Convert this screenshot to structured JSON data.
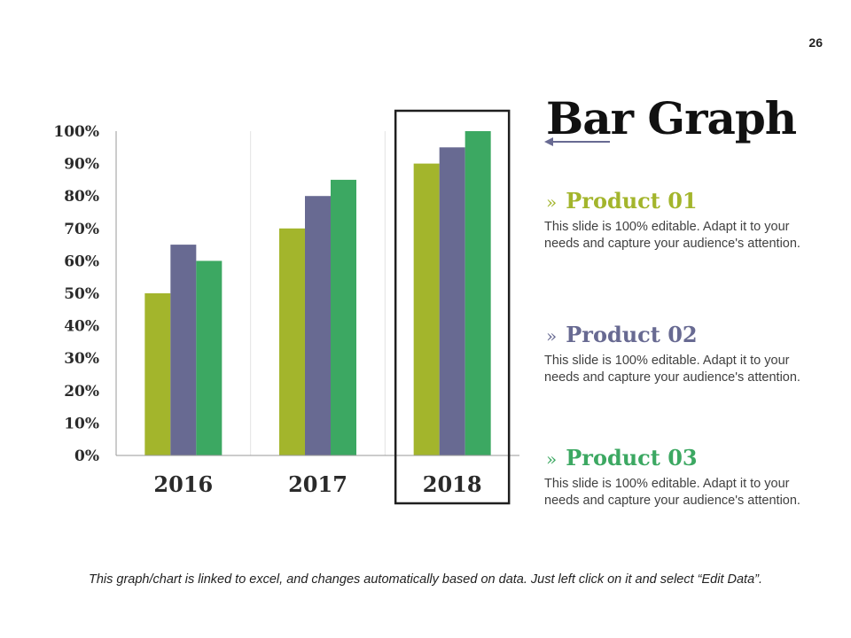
{
  "slide": {
    "page_number": "26",
    "title": "Bar Graph",
    "footer_note": "This graph/chart is linked to excel, and changes automatically based on data. Just left click on it and select “Edit Data”."
  },
  "products": [
    {
      "chevron": "»",
      "name": "Product 01",
      "color": "#a3b52c",
      "description": "This slide is 100% editable. Adapt it to your needs and capture your audience's attention."
    },
    {
      "chevron": "»",
      "name": "Product 02",
      "color": "#686a92",
      "description": "This slide is 100% editable. Adapt it to your needs and capture your audience's attention."
    },
    {
      "chevron": "»",
      "name": "Product 03",
      "color": "#3ca862",
      "description": "This slide is 100% editable. Adapt it to your needs and capture your audience's attention."
    }
  ],
  "chart_data": {
    "type": "bar",
    "title": "",
    "xlabel": "",
    "ylabel": "",
    "categories": [
      "2016",
      "2017",
      "2018"
    ],
    "series": [
      {
        "name": "Product 01",
        "color": "#a3b52c",
        "values": [
          50,
          70,
          90
        ]
      },
      {
        "name": "Product 02",
        "color": "#686a92",
        "values": [
          65,
          80,
          95
        ]
      },
      {
        "name": "Product 03",
        "color": "#3ca862",
        "values": [
          60,
          85,
          100
        ]
      }
    ],
    "ylim": [
      0,
      100
    ],
    "yticks": [
      0,
      10,
      20,
      30,
      40,
      50,
      60,
      70,
      80,
      90,
      100
    ],
    "ytick_labels": [
      "0%",
      "10%",
      "20%",
      "30%",
      "40%",
      "50%",
      "60%",
      "70%",
      "80%",
      "90%",
      "100%"
    ],
    "highlighted_category": "2018",
    "grid": "vertical separators"
  }
}
